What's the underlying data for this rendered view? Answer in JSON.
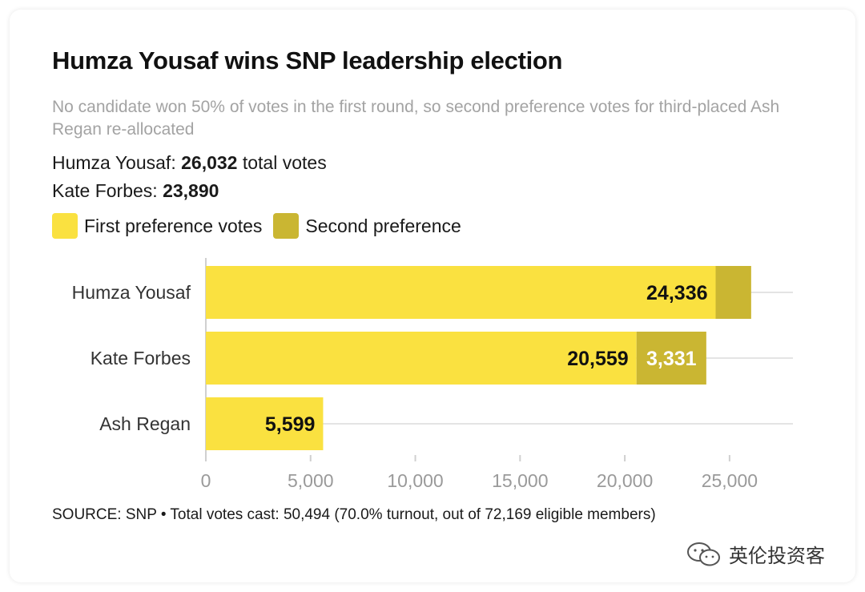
{
  "title": "Humza Yousaf wins SNP leadership election",
  "subtitle": "No candidate won 50% of votes in the first round, so second preference votes for third-placed Ash Regan re-allocated",
  "summary": {
    "line1_name": "Humza Yousaf:",
    "line1_value": "26,032",
    "line1_suffix": "total votes",
    "line2_name": "Kate Forbes:",
    "line2_value": "23,890"
  },
  "legend": {
    "first": "First preference votes",
    "second": "Second preference"
  },
  "colors": {
    "first": "#fae140",
    "second": "#cab632",
    "grid": "#e4e4e4"
  },
  "chart_data": {
    "type": "bar",
    "orientation": "horizontal",
    "stacked": true,
    "categories": [
      "Humza Yousaf",
      "Kate Forbes",
      "Ash Regan"
    ],
    "series": [
      {
        "name": "First preference votes",
        "values": [
          24336,
          20559,
          5599
        ],
        "labels": [
          "24,336",
          "20,559",
          "5,599"
        ]
      },
      {
        "name": "Second preference",
        "values": [
          1696,
          3331,
          0
        ],
        "labels": [
          "",
          "3,331",
          ""
        ]
      }
    ],
    "xticks": [
      0,
      5000,
      10000,
      15000,
      20000,
      25000
    ],
    "xtick_labels": [
      "0",
      "5,000",
      "10,000",
      "15,000",
      "20,000",
      "25,000"
    ],
    "xlim": [
      0,
      28000
    ],
    "grid": true
  },
  "source": "SOURCE: SNP • Total votes cast: 50,494 (70.0% turnout, out of 72,169 eligible members)",
  "watermark": "英伦投资客"
}
